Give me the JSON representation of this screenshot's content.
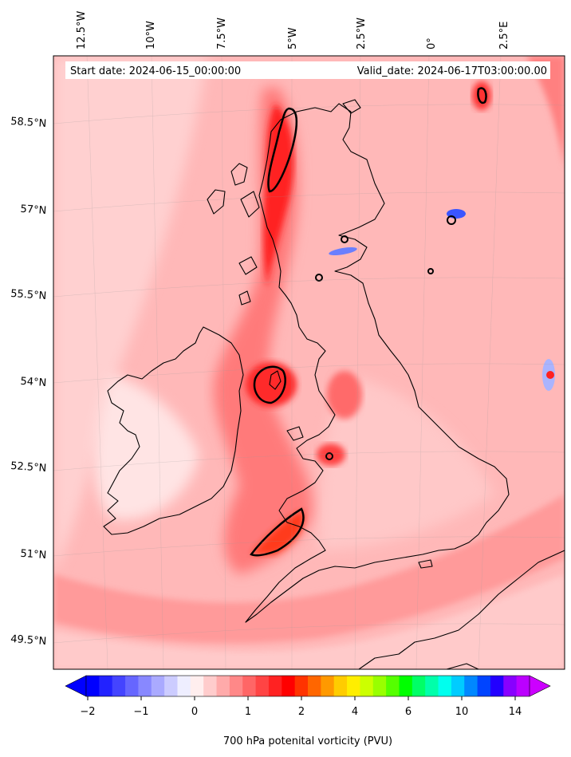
{
  "banner": {
    "start_label": "Start date: 2024-06-15_00:00:00",
    "valid_label": "Valid_date: 2024-06-17T03:00:00.00"
  },
  "longitude_labels": [
    "12.5°W",
    "10°W",
    "7.5°W",
    "5°W",
    "2.5°W",
    "0°",
    "2.5°E"
  ],
  "latitude_labels": [
    "58.5°N",
    "57°N",
    "55.5°N",
    "54°N",
    "52.5°N",
    "51°N",
    "49.5°N"
  ],
  "colorbar": {
    "label": "700 hPa potenital vorticity (PVU)",
    "tick_labels": [
      "−2",
      "−1",
      "0",
      "1",
      "2",
      "4",
      "6",
      "10",
      "14"
    ],
    "colors": [
      "#0000ff",
      "#2222ff",
      "#4444ff",
      "#6666ff",
      "#8888ff",
      "#aaaaff",
      "#ccccff",
      "#eeeeff",
      "#ffeeee",
      "#ffcccc",
      "#ffaaaa",
      "#ff8888",
      "#ff6666",
      "#ff4444",
      "#ff2222",
      "#ff0000",
      "#ff3300",
      "#ff6600",
      "#ff9900",
      "#ffcc00",
      "#ffee00",
      "#ccff00",
      "#99ff00",
      "#55ff00",
      "#00ff00",
      "#00ff66",
      "#00ffaa",
      "#00ffee",
      "#00ccff",
      "#0088ff",
      "#0044ff",
      "#2200ff",
      "#8800ff",
      "#bb00ff"
    ],
    "under_color": "#0000ff",
    "over_color": "#cc00ff"
  },
  "colors": {
    "background_field": "#ffb0b0",
    "high_pv": "#ff0000",
    "coastline": "#000000",
    "contour": "#000000"
  }
}
